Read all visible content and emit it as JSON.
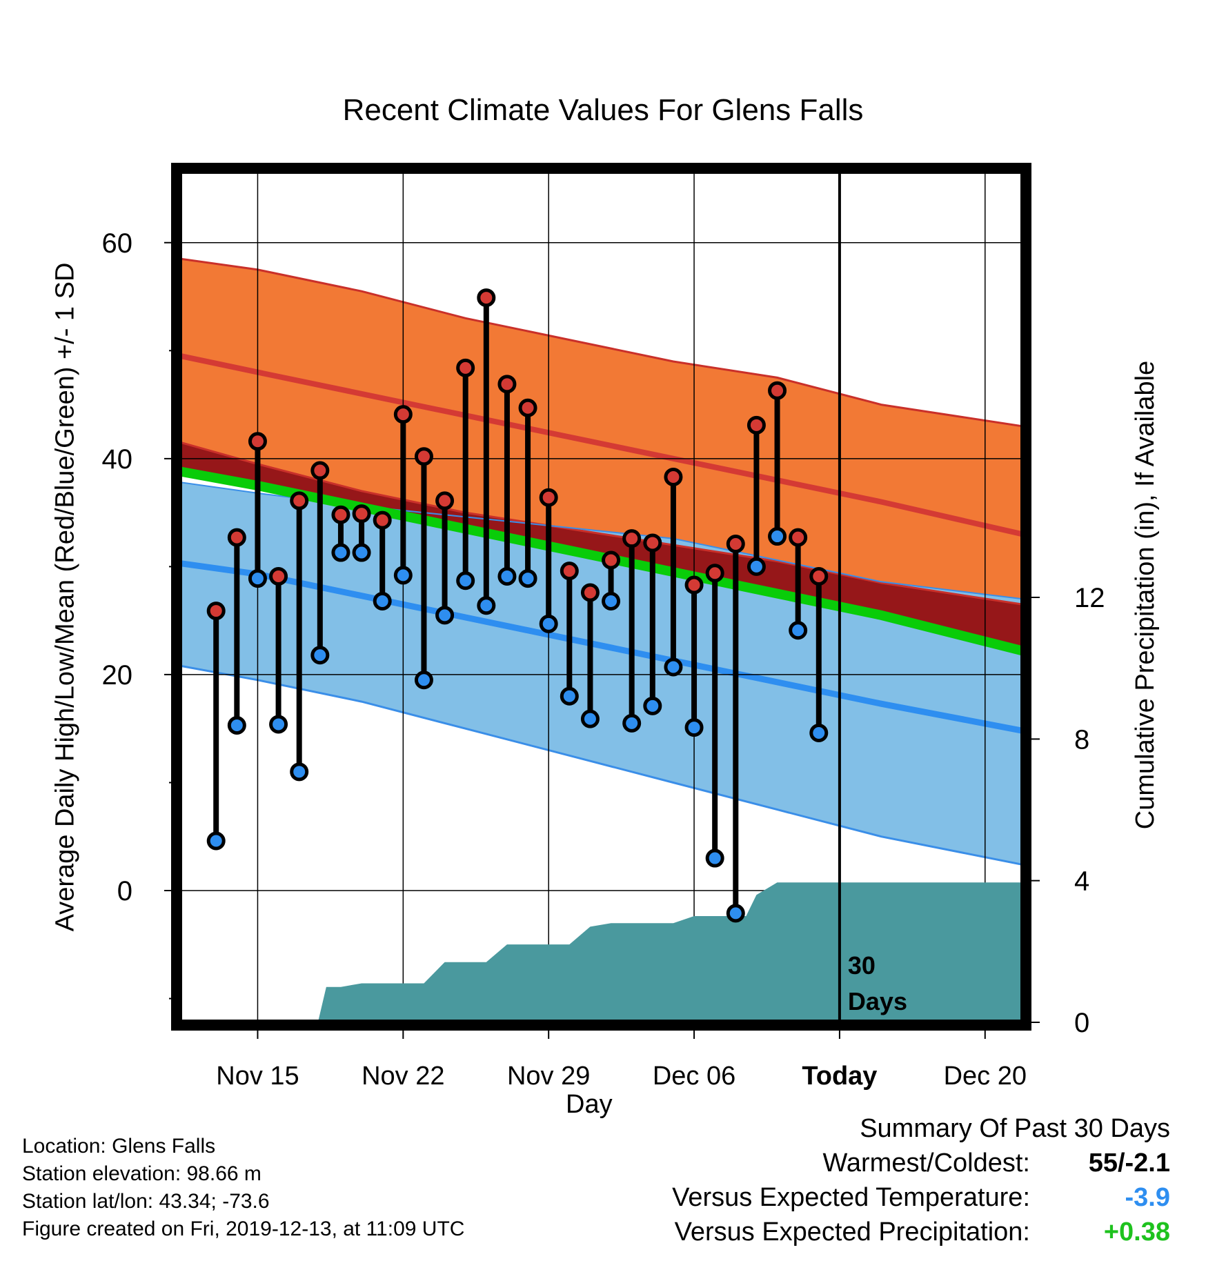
{
  "chart_data": {
    "type": "line",
    "title": "Recent Climate Values For Glens Falls",
    "xlabel": "Day",
    "ylabel": "Average Daily High/Low/Mean (Red/Blue/Green) +/- 1 SD",
    "ylabel_right": "Cumulative Precipitation (in), If Available",
    "x_ticks": [
      {
        "label": "Nov 15",
        "day": 15
      },
      {
        "label": "Nov 22",
        "day": 22
      },
      {
        "label": "Nov 29",
        "day": 29
      },
      {
        "label": "Dec 06",
        "day": 36
      },
      {
        "label": "Today",
        "day": 43
      },
      {
        "label": "Dec 20",
        "day": 50
      }
    ],
    "x_range": [
      11.3,
      51.8
    ],
    "x_unit": "day of November (Dec 01 = 31)",
    "ylim": [
      -12.2,
      66.5
    ],
    "y_ticks": [
      0,
      20,
      40,
      60
    ],
    "y_minor_ticks": [
      -10,
      10,
      30,
      50
    ],
    "y2_ticks": [
      0,
      4,
      8,
      12
    ],
    "y2_range": [
      0,
      24
    ],
    "grid": true,
    "today_label": "30\nDays",
    "today_day": 43,
    "normals": {
      "day": [
        11.3,
        15,
        20,
        25,
        30,
        35,
        40,
        45,
        51.8
      ],
      "high_mean": [
        49.5,
        48,
        46,
        44,
        42,
        40,
        38,
        36,
        33
      ],
      "high_upper": [
        58.5,
        57.5,
        55.5,
        53,
        51,
        49,
        47.5,
        45,
        43
      ],
      "high_lower": [
        41.5,
        39.5,
        37,
        35,
        33.5,
        32,
        30.5,
        28.5,
        26.5
      ],
      "low_mean": [
        30.3,
        29.3,
        27.3,
        25.3,
        23.3,
        21.3,
        19.3,
        17.3,
        14.8
      ],
      "low_upper": [
        37.8,
        36.8,
        35.6,
        34.6,
        33.6,
        32.6,
        30.6,
        28.6,
        27
      ],
      "low_lower": [
        20.8,
        19.5,
        17.5,
        15,
        12.5,
        10,
        7.5,
        5,
        2.4
      ],
      "avg_mean": [
        38.8,
        37.5,
        35.5,
        33.5,
        31.5,
        29.5,
        27.5,
        25.5,
        22.2
      ]
    },
    "series": [
      {
        "name": "High",
        "color": "#d43a34",
        "day": [
          13,
          14,
          15,
          16,
          17,
          18,
          19,
          20,
          21,
          22,
          23,
          24,
          25,
          26,
          27,
          28,
          29,
          30,
          31,
          32,
          33,
          34,
          35,
          36,
          37,
          38,
          39,
          40,
          41,
          42
        ],
        "values": [
          25.9,
          32.7,
          41.6,
          29.1,
          36.1,
          38.9,
          34.8,
          34.9,
          34.3,
          44.1,
          40.2,
          36.1,
          48.4,
          54.9,
          46.9,
          44.7,
          36.4,
          29.6,
          27.6,
          30.6,
          32.6,
          32.2,
          38.3,
          28.3,
          29.4,
          32.1,
          43.1,
          46.3,
          32.7,
          29.1
        ]
      },
      {
        "name": "Low",
        "color": "#2e8ef0",
        "day": [
          13,
          14,
          15,
          16,
          17,
          18,
          19,
          20,
          21,
          22,
          23,
          24,
          25,
          26,
          27,
          28,
          29,
          30,
          31,
          32,
          33,
          34,
          35,
          36,
          37,
          38,
          39,
          40,
          41,
          42
        ],
        "values": [
          4.6,
          15.3,
          28.9,
          15.4,
          11,
          21.8,
          31.3,
          31.3,
          26.8,
          29.2,
          19.5,
          25.5,
          28.7,
          26.4,
          29.1,
          28.9,
          24.7,
          18,
          15.9,
          26.8,
          15.5,
          17.1,
          20.7,
          15.1,
          3,
          -2.1,
          30,
          32.8,
          24.1,
          14.6
        ]
      }
    ],
    "precipitation": {
      "day": [
        11.3,
        17.9,
        18.3,
        19,
        20,
        21,
        22,
        23,
        24,
        25,
        26,
        27,
        28,
        29,
        30,
        31,
        32,
        33,
        34,
        35,
        36,
        37,
        38,
        38.5,
        39,
        40,
        41,
        42,
        43,
        51.8
      ],
      "values": [
        0,
        0,
        1,
        1,
        1.1,
        1.1,
        1.1,
        1.1,
        1.7,
        1.7,
        1.7,
        2.2,
        2.2,
        2.2,
        2.2,
        2.7,
        2.8,
        2.8,
        2.8,
        2.8,
        3,
        3,
        3,
        3,
        3.6,
        3.95,
        3.95,
        3.95,
        3.95,
        3.95
      ]
    },
    "colors": {
      "high_band": "#f27935",
      "high_edge": "#c9302a",
      "high_mean": "#d43a34",
      "overlap": "#961719",
      "low_band": "#82bfe7",
      "low_edge": "#3a8ee8",
      "low_mean": "#2e8ef0",
      "avg_mean": "#09cc09",
      "precip": "#4a999e"
    }
  },
  "info": {
    "location": "Location: Glens Falls",
    "elevation": "Station elevation: 98.66 m",
    "latlon": "Station lat/lon: 43.34; -73.6",
    "created": "Figure created on Fri, 2019-12-13, at 11:09 UTC"
  },
  "summary": {
    "title": "Summary Of Past 30 Days",
    "warmest_label": "Warmest/Coldest:",
    "warmest_value": "55/-2.1",
    "temp_label": "Versus Expected Temperature:",
    "temp_value": "-3.9",
    "temp_color": "#2e8ef0",
    "precip_label": "Versus Expected Precipitation:",
    "precip_value": "+0.38",
    "precip_color": "#1ec21e"
  }
}
